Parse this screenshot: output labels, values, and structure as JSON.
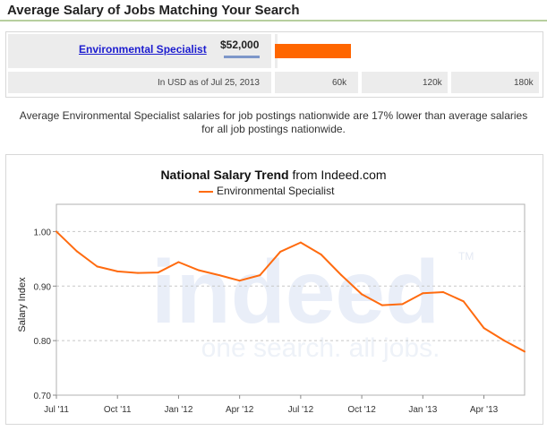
{
  "header": {
    "title": "Average Salary of Jobs Matching Your Search"
  },
  "salary": {
    "job_title": "Environmental Specialist",
    "amount_label": "$52,000",
    "amount": 52000,
    "scale_max": 180000,
    "as_of": "In USD as of Jul 25, 2013",
    "ticks": [
      "60k",
      "120k",
      "180k"
    ],
    "bar_color": "#ff6600"
  },
  "description": {
    "line1": "Average Environmental Specialist salaries for job postings nationwide are 17% lower than average salaries",
    "line2": "for all job postings nationwide."
  },
  "chart_data": {
    "type": "line",
    "title_bold": "National Salary Trend",
    "title_rest": " from Indeed.com",
    "ylabel": "Salary Index",
    "ylim": [
      0.7,
      1.05
    ],
    "yticks": [
      "1.00",
      "0.90",
      "0.80",
      "0.70"
    ],
    "xticks": [
      "Jul '11",
      "Oct '11",
      "Jan '12",
      "Apr '12",
      "Jul '12",
      "Oct '12",
      "Jan '13",
      "Apr '13"
    ],
    "grid": true,
    "legend_position": "top",
    "x": [
      "Jul '11",
      "Aug '11",
      "Sep '11",
      "Oct '11",
      "Nov '11",
      "Dec '11",
      "Jan '12",
      "Feb '12",
      "Mar '12",
      "Apr '12",
      "May '12",
      "Jun '12",
      "Jul '12",
      "Aug '12",
      "Sep '12",
      "Oct '12",
      "Nov '12",
      "Dec '12",
      "Jan '13",
      "Feb '13",
      "Mar '13",
      "Apr '13",
      "May '13",
      "Jun '13"
    ],
    "series": [
      {
        "name": "Environmental Specialist",
        "color": "#ff6b0f",
        "values": [
          1.0,
          0.964,
          0.936,
          0.927,
          0.924,
          0.925,
          0.944,
          0.929,
          0.92,
          0.91,
          0.92,
          0.963,
          0.98,
          0.958,
          0.92,
          0.885,
          0.865,
          0.867,
          0.887,
          0.889,
          0.872,
          0.823,
          0.8,
          0.78
        ]
      }
    ],
    "watermark": {
      "logo": "indeed",
      "tagline": "one search. all jobs.",
      "tm": "TM"
    }
  }
}
